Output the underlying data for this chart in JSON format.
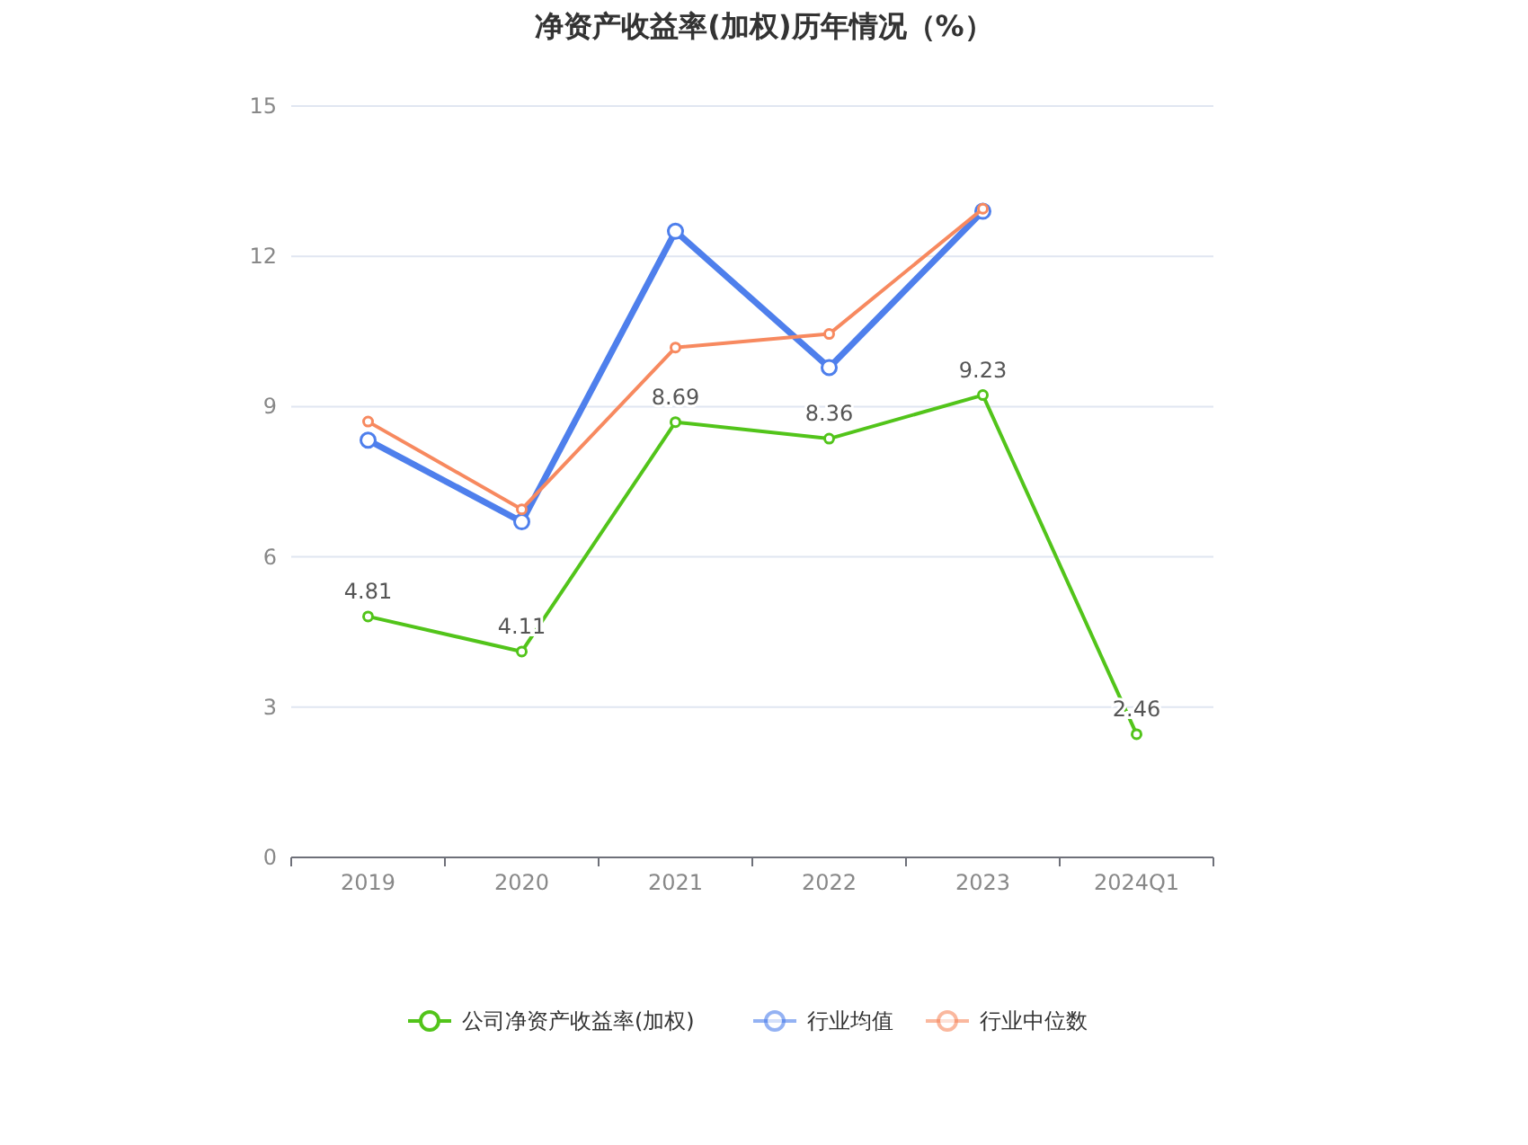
{
  "chart_data": {
    "type": "line",
    "title": "净资产收益率(加权)历年情况（%）",
    "categories": [
      "2019",
      "2020",
      "2021",
      "2022",
      "2023",
      "2024Q1"
    ],
    "series": [
      {
        "name": "公司净资产收益率(加权)",
        "color": "#52c41a",
        "values": [
          4.81,
          4.11,
          8.69,
          8.36,
          9.23,
          2.46
        ],
        "value_labels": [
          "4.81",
          "4.11",
          "8.69",
          "8.36",
          "9.23",
          "2.46"
        ]
      },
      {
        "name": "行业均值",
        "color": "#4e7fec",
        "values": [
          8.33,
          6.7,
          12.5,
          9.78,
          12.9,
          null
        ]
      },
      {
        "name": "行业中位数",
        "color": "#f7895f",
        "values": [
          8.7,
          6.95,
          10.18,
          10.45,
          12.95,
          null
        ]
      }
    ],
    "ylim": [
      0,
      15
    ],
    "yticks": [
      0,
      3,
      6,
      9,
      12,
      15
    ],
    "grid": "y",
    "legend": "bottom",
    "marker": "circle",
    "line_style": "solid"
  }
}
